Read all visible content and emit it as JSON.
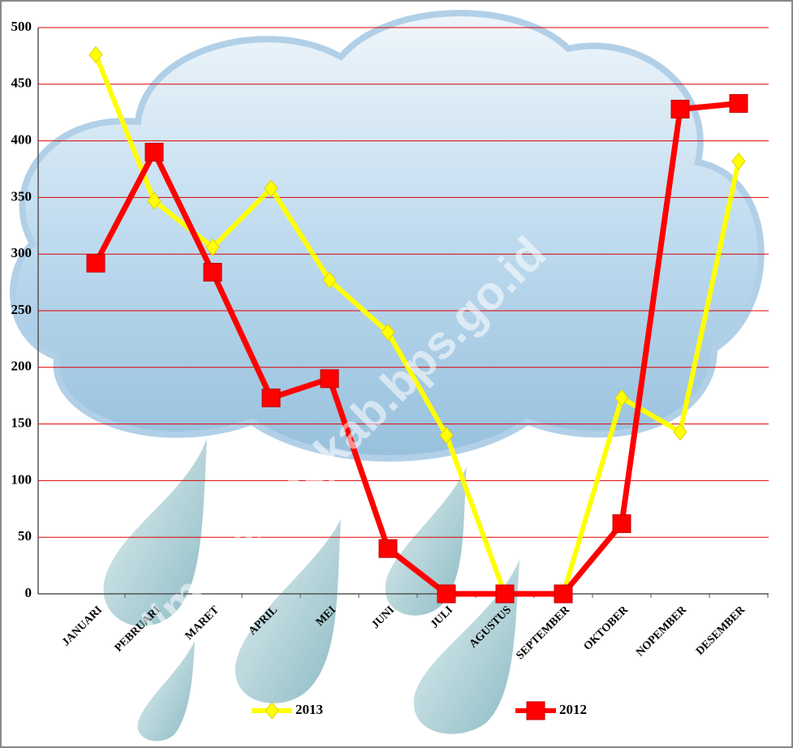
{
  "chart_data": {
    "type": "line",
    "categories": [
      "JANUARI",
      "PEBRUARI",
      "MARET",
      "APRIL",
      "MEI",
      "JUNI",
      "JULI",
      "AGUSTUS",
      "SEPTEMBER",
      "OKTOBER",
      "NOPEMBER",
      "DESEMBER"
    ],
    "series": [
      {
        "name": "2013",
        "color": "#ffff00",
        "marker": "diamond",
        "values": [
          476,
          347,
          306,
          358,
          277,
          231,
          140,
          0,
          0,
          173,
          143,
          382
        ]
      },
      {
        "name": "2012",
        "color": "#ff0000",
        "marker": "square",
        "values": [
          292,
          390,
          284,
          173,
          190,
          40,
          0,
          0,
          0,
          62,
          428,
          433
        ]
      }
    ],
    "ylim": [
      0,
      500
    ],
    "yticks": [
      0,
      50,
      100,
      150,
      200,
      250,
      300,
      350,
      400,
      450,
      500
    ],
    "grid": true,
    "grid_color": "#e00000",
    "legend": "bottom",
    "watermark": "http://magelangkab.bps.go.id"
  }
}
